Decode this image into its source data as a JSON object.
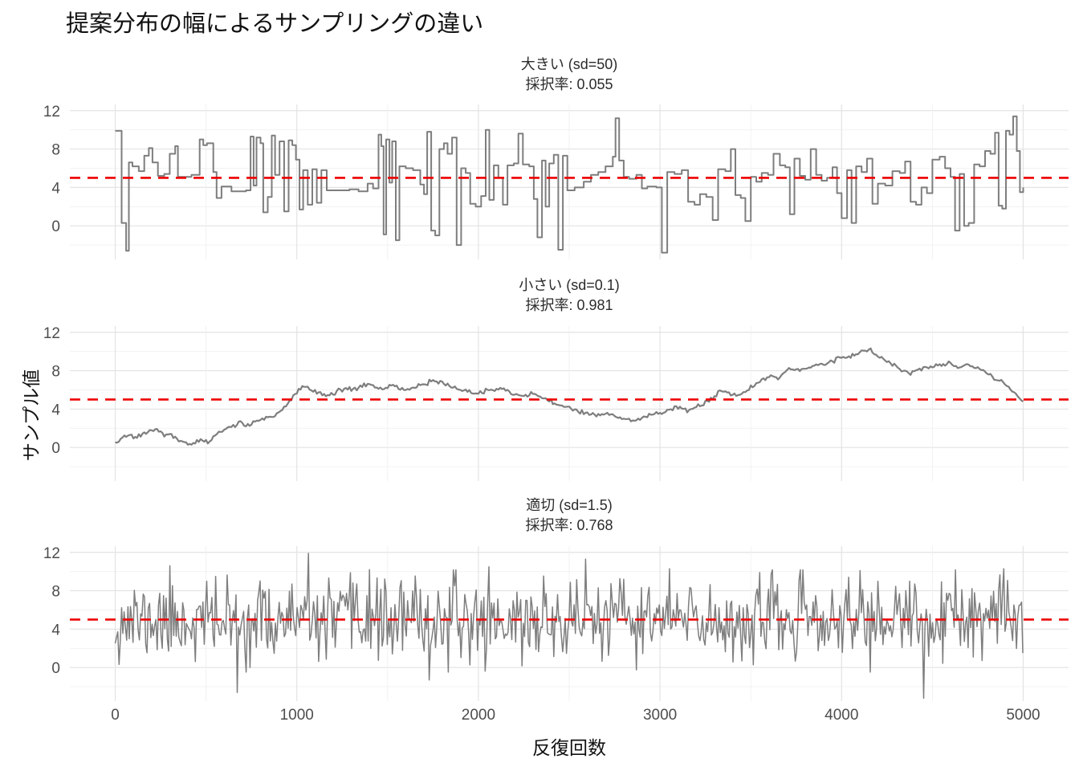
{
  "chart_data": {
    "type": "line",
    "title": "提案分布の幅によるサンプリングの違い",
    "xlabel": "反復回数",
    "ylabel": "サンプル値",
    "xlim": [
      -250,
      5250
    ],
    "ylim": [
      -3.5,
      12.65
    ],
    "x_ticks": [
      0,
      1000,
      2000,
      3000,
      4000,
      5000
    ],
    "y_ticks": [
      0,
      4,
      8,
      12
    ],
    "x_minor_step": 500,
    "y_grid_step": 2,
    "grid": "on",
    "legend": "none",
    "line_color": "#7e7e7e",
    "grid_major_color": "#e3e3e3",
    "grid_minor_color": "#f0f0f0",
    "reference_line": {
      "y": 5,
      "color": "#ee0000",
      "style": "dashed"
    },
    "panels": [
      {
        "strip_line1": "大きい (sd=50)",
        "strip_line2": "採択率: 0.055",
        "proposal_sd": 50,
        "acceptance_rate": 0.055,
        "trace_style": "step",
        "line_width": 2.0,
        "steps": [
          [
            0,
            9.9
          ],
          [
            35,
            0.3
          ],
          [
            60,
            -2.6
          ],
          [
            75,
            6.6
          ],
          [
            95,
            6.2
          ],
          [
            130,
            5.7
          ],
          [
            160,
            7.3
          ],
          [
            185,
            8.1
          ],
          [
            205,
            6.6
          ],
          [
            235,
            5.2
          ],
          [
            270,
            5.4
          ],
          [
            300,
            7.5
          ],
          [
            330,
            8.3
          ],
          [
            345,
            5.1
          ],
          [
            420,
            5.3
          ],
          [
            465,
            9.0
          ],
          [
            485,
            8.4
          ],
          [
            505,
            8.6
          ],
          [
            540,
            5.6
          ],
          [
            558,
            2.9
          ],
          [
            585,
            4.1
          ],
          [
            640,
            3.6
          ],
          [
            720,
            3.7
          ],
          [
            745,
            9.3
          ],
          [
            762,
            4.2
          ],
          [
            778,
            9.2
          ],
          [
            800,
            8.6
          ],
          [
            815,
            1.4
          ],
          [
            840,
            3.0
          ],
          [
            862,
            9.4
          ],
          [
            880,
            5.3
          ],
          [
            905,
            8.8
          ],
          [
            930,
            1.5
          ],
          [
            955,
            8.9
          ],
          [
            975,
            8.4
          ],
          [
            995,
            6.9
          ],
          [
            1015,
            1.7
          ],
          [
            1035,
            5.8
          ],
          [
            1060,
            2.2
          ],
          [
            1085,
            5.9
          ],
          [
            1110,
            2.4
          ],
          [
            1135,
            5.8
          ],
          [
            1165,
            3.7
          ],
          [
            1290,
            3.8
          ],
          [
            1340,
            3.6
          ],
          [
            1390,
            4.4
          ],
          [
            1420,
            3.9
          ],
          [
            1450,
            9.5
          ],
          [
            1465,
            8.3
          ],
          [
            1478,
            -0.9
          ],
          [
            1492,
            9.0
          ],
          [
            1510,
            4.5
          ],
          [
            1525,
            8.8
          ],
          [
            1545,
            -1.5
          ],
          [
            1565,
            6.2
          ],
          [
            1600,
            6.0
          ],
          [
            1640,
            5.8
          ],
          [
            1680,
            4.3
          ],
          [
            1700,
            3.3
          ],
          [
            1718,
            9.8
          ],
          [
            1740,
            -0.5
          ],
          [
            1762,
            -1.0
          ],
          [
            1785,
            8.0
          ],
          [
            1810,
            8.6
          ],
          [
            1830,
            7.5
          ],
          [
            1855,
            9.2
          ],
          [
            1880,
            -2.0
          ],
          [
            1905,
            6.0
          ],
          [
            1930,
            5.5
          ],
          [
            1955,
            2.3
          ],
          [
            1985,
            2.0
          ],
          [
            2015,
            3.1
          ],
          [
            2040,
            10.0
          ],
          [
            2060,
            2.7
          ],
          [
            2085,
            6.3
          ],
          [
            2110,
            5.0
          ],
          [
            2135,
            2.2
          ],
          [
            2160,
            6.3
          ],
          [
            2195,
            6.5
          ],
          [
            2220,
            9.6
          ],
          [
            2245,
            6.4
          ],
          [
            2280,
            6.2
          ],
          [
            2305,
            2.8
          ],
          [
            2325,
            -1.2
          ],
          [
            2350,
            6.8
          ],
          [
            2370,
            2.0
          ],
          [
            2390,
            6.5
          ],
          [
            2415,
            7.4
          ],
          [
            2440,
            -2.5
          ],
          [
            2465,
            7.3
          ],
          [
            2490,
            3.7
          ],
          [
            2530,
            4.0
          ],
          [
            2580,
            4.6
          ],
          [
            2620,
            5.3
          ],
          [
            2660,
            5.6
          ],
          [
            2700,
            6.2
          ],
          [
            2740,
            7.2
          ],
          [
            2755,
            11.2
          ],
          [
            2775,
            6.8
          ],
          [
            2800,
            5.1
          ],
          [
            2830,
            4.9
          ],
          [
            2870,
            5.3
          ],
          [
            2900,
            3.9
          ],
          [
            2930,
            4.1
          ],
          [
            2980,
            4.0
          ],
          [
            3010,
            -2.8
          ],
          [
            3040,
            5.6
          ],
          [
            3080,
            5.4
          ],
          [
            3120,
            5.8
          ],
          [
            3155,
            2.5
          ],
          [
            3190,
            2.2
          ],
          [
            3220,
            3.3
          ],
          [
            3255,
            3.0
          ],
          [
            3290,
            0.6
          ],
          [
            3320,
            5.9
          ],
          [
            3360,
            5.7
          ],
          [
            3390,
            8.0
          ],
          [
            3415,
            3.2
          ],
          [
            3445,
            2.9
          ],
          [
            3470,
            0.5
          ],
          [
            3500,
            5.1
          ],
          [
            3530,
            4.6
          ],
          [
            3560,
            5.5
          ],
          [
            3595,
            5.3
          ],
          [
            3625,
            7.5
          ],
          [
            3660,
            6.3
          ],
          [
            3690,
            6.1
          ],
          [
            3715,
            1.2
          ],
          [
            3740,
            7.0
          ],
          [
            3770,
            5.2
          ],
          [
            3800,
            4.8
          ],
          [
            3830,
            8.0
          ],
          [
            3860,
            5.3
          ],
          [
            3890,
            4.7
          ],
          [
            3920,
            5.0
          ],
          [
            3950,
            6.1
          ],
          [
            3975,
            3.4
          ],
          [
            4000,
            0.8
          ],
          [
            4030,
            5.8
          ],
          [
            4055,
            0.3
          ],
          [
            4080,
            6.2
          ],
          [
            4110,
            5.6
          ],
          [
            4140,
            7.0
          ],
          [
            4170,
            2.3
          ],
          [
            4200,
            4.4
          ],
          [
            4240,
            4.2
          ],
          [
            4280,
            5.7
          ],
          [
            4320,
            5.5
          ],
          [
            4350,
            6.7
          ],
          [
            4380,
            2.5
          ],
          [
            4410,
            2.2
          ],
          [
            4440,
            4.0
          ],
          [
            4470,
            3.4
          ],
          [
            4500,
            6.9
          ],
          [
            4540,
            7.2
          ],
          [
            4570,
            6.0
          ],
          [
            4600,
            5.1
          ],
          [
            4625,
            -0.5
          ],
          [
            4650,
            5.4
          ],
          [
            4675,
            0.0
          ],
          [
            4700,
            0.3
          ],
          [
            4730,
            6.4
          ],
          [
            4760,
            6.2
          ],
          [
            4790,
            7.8
          ],
          [
            4820,
            7.5
          ],
          [
            4845,
            9.7
          ],
          [
            4865,
            2.1
          ],
          [
            4885,
            1.8
          ],
          [
            4905,
            9.9
          ],
          [
            4925,
            9.5
          ],
          [
            4945,
            11.4
          ],
          [
            4965,
            7.8
          ],
          [
            4982,
            3.5
          ],
          [
            5000,
            4.0
          ]
        ]
      },
      {
        "strip_line1": "小さい (sd=0.1)",
        "strip_line2": "採択率: 0.981",
        "proposal_sd": 0.1,
        "acceptance_rate": 0.981,
        "trace_style": "walk",
        "line_width": 2.2,
        "noise": {
          "seed": 5,
          "amp": 0.18,
          "step": 10
        },
        "points": [
          [
            0,
            0.4
          ],
          [
            40,
            1.0
          ],
          [
            70,
            1.3
          ],
          [
            110,
            1.1
          ],
          [
            150,
            1.4
          ],
          [
            200,
            1.7
          ],
          [
            230,
            1.9
          ],
          [
            270,
            1.3
          ],
          [
            310,
            1.4
          ],
          [
            350,
            0.7
          ],
          [
            390,
            0.35
          ],
          [
            430,
            0.5
          ],
          [
            470,
            0.8
          ],
          [
            510,
            0.5
          ],
          [
            550,
            1.3
          ],
          [
            590,
            1.8
          ],
          [
            640,
            2.2
          ],
          [
            690,
            2.6
          ],
          [
            740,
            2.3
          ],
          [
            790,
            2.9
          ],
          [
            840,
            3.1
          ],
          [
            880,
            3.4
          ],
          [
            920,
            4.0
          ],
          [
            950,
            4.6
          ],
          [
            980,
            5.4
          ],
          [
            1010,
            6.0
          ],
          [
            1040,
            6.4
          ],
          [
            1080,
            6.0
          ],
          [
            1120,
            5.7
          ],
          [
            1160,
            5.4
          ],
          [
            1200,
            5.6
          ],
          [
            1240,
            6.0
          ],
          [
            1280,
            6.2
          ],
          [
            1320,
            6.0
          ],
          [
            1360,
            6.4
          ],
          [
            1400,
            6.6
          ],
          [
            1440,
            6.3
          ],
          [
            1480,
            6.1
          ],
          [
            1520,
            6.5
          ],
          [
            1560,
            6.3
          ],
          [
            1600,
            6.0
          ],
          [
            1650,
            6.3
          ],
          [
            1700,
            6.6
          ],
          [
            1750,
            7.0
          ],
          [
            1800,
            6.7
          ],
          [
            1850,
            6.3
          ],
          [
            1900,
            6.0
          ],
          [
            1950,
            5.8
          ],
          [
            2000,
            5.6
          ],
          [
            2050,
            6.0
          ],
          [
            2100,
            6.2
          ],
          [
            2150,
            5.9
          ],
          [
            2200,
            5.6
          ],
          [
            2250,
            5.3
          ],
          [
            2300,
            5.6
          ],
          [
            2350,
            5.2
          ],
          [
            2400,
            4.8
          ],
          [
            2450,
            4.3
          ],
          [
            2500,
            4.0
          ],
          [
            2550,
            3.8
          ],
          [
            2600,
            3.6
          ],
          [
            2650,
            3.4
          ],
          [
            2700,
            3.6
          ],
          [
            2750,
            3.3
          ],
          [
            2800,
            3.0
          ],
          [
            2850,
            2.8
          ],
          [
            2900,
            3.1
          ],
          [
            2950,
            3.4
          ],
          [
            3000,
            3.6
          ],
          [
            3050,
            3.9
          ],
          [
            3100,
            4.2
          ],
          [
            3150,
            3.9
          ],
          [
            3200,
            4.3
          ],
          [
            3250,
            4.7
          ],
          [
            3300,
            5.2
          ],
          [
            3330,
            6.0
          ],
          [
            3370,
            5.8
          ],
          [
            3420,
            5.3
          ],
          [
            3470,
            5.9
          ],
          [
            3520,
            6.4
          ],
          [
            3560,
            7.0
          ],
          [
            3610,
            7.4
          ],
          [
            3650,
            7.2
          ],
          [
            3710,
            8.2
          ],
          [
            3760,
            8.0
          ],
          [
            3810,
            8.4
          ],
          [
            3850,
            8.6
          ],
          [
            3900,
            8.8
          ],
          [
            3950,
            9.0
          ],
          [
            4000,
            9.3
          ],
          [
            4060,
            9.6
          ],
          [
            4120,
            10.0
          ],
          [
            4160,
            10.2
          ],
          [
            4210,
            9.4
          ],
          [
            4260,
            9.1
          ],
          [
            4320,
            8.1
          ],
          [
            4380,
            7.8
          ],
          [
            4430,
            8.2
          ],
          [
            4480,
            8.4
          ],
          [
            4540,
            8.6
          ],
          [
            4600,
            8.8
          ],
          [
            4650,
            8.4
          ],
          [
            4700,
            8.7
          ],
          [
            4750,
            8.2
          ],
          [
            4800,
            7.9
          ],
          [
            4840,
            7.1
          ],
          [
            4890,
            6.9
          ],
          [
            4940,
            5.8
          ],
          [
            4970,
            5.3
          ],
          [
            5000,
            4.8
          ]
        ]
      },
      {
        "strip_line1": "適切 (sd=1.5)",
        "strip_line2": "採択率: 0.768",
        "proposal_sd": 1.5,
        "acceptance_rate": 0.768,
        "trace_style": "noise",
        "line_width": 1.5,
        "noise": {
          "seed": 11,
          "step": 7,
          "mean": 4.85,
          "sd": 2.05,
          "clip": [
            -2.9,
            11.9
          ]
        },
        "spikes": [
          [
            300,
            10.6
          ],
          [
            675,
            -2.6
          ],
          [
            1065,
            11.9
          ],
          [
            1400,
            10.2
          ],
          [
            1730,
            -1.3
          ],
          [
            2060,
            10.5
          ],
          [
            2590,
            11.3
          ],
          [
            3050,
            10.3
          ],
          [
            3550,
            9.9
          ],
          [
            4100,
            10.1
          ],
          [
            4450,
            -3.2
          ],
          [
            4890,
            10.3
          ]
        ]
      }
    ]
  }
}
